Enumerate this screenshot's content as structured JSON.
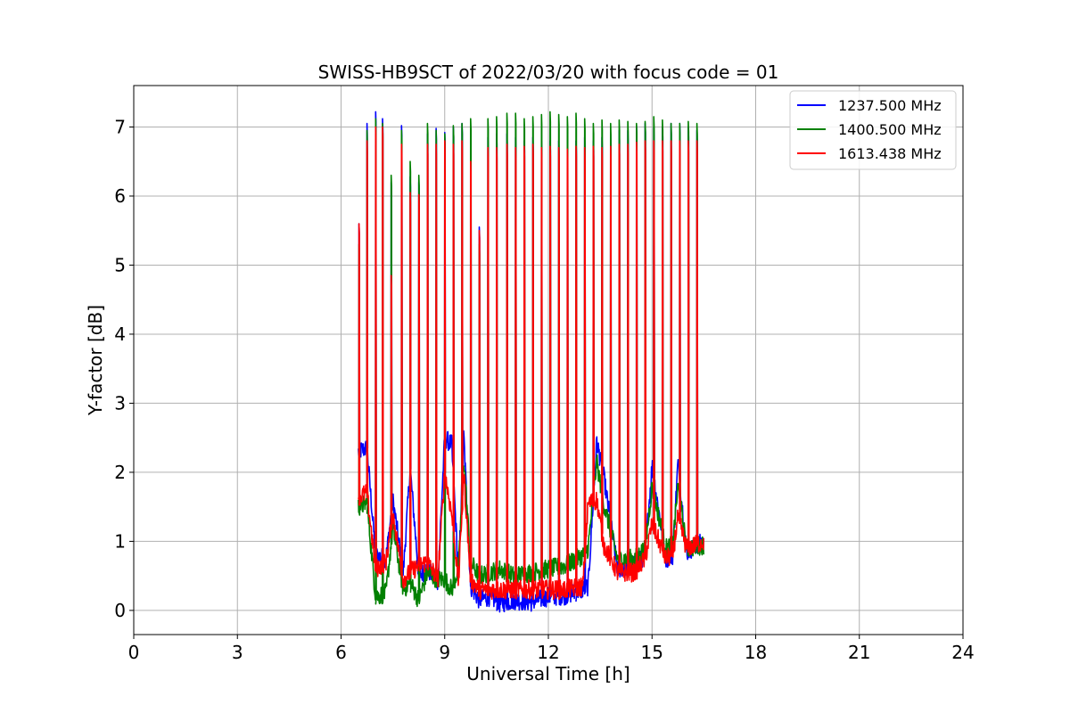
{
  "chart_data": {
    "type": "line",
    "title": "SWISS-HB9SCT of 2022/03/20 with focus code = 01",
    "xlabel": "Universal Time [h]",
    "ylabel": "Y-factor [dB]",
    "xlim": [
      0,
      24
    ],
    "ylim": [
      -0.35,
      7.6
    ],
    "xticks": [
      0,
      3,
      6,
      9,
      12,
      15,
      18,
      21,
      24
    ],
    "yticks": [
      0,
      1,
      2,
      3,
      4,
      5,
      6,
      7
    ],
    "grid": true,
    "legend_position": "top-right",
    "baseline_shape": {
      "x": [
        6.5,
        6.75,
        7.0,
        7.3,
        7.5,
        7.8,
        8.0,
        8.25,
        8.5,
        8.8,
        9.0,
        9.2,
        9.4,
        9.55,
        9.75,
        10.0,
        10.3,
        10.6,
        11.0,
        11.5,
        12.0,
        12.5,
        13.0,
        13.15,
        13.4,
        13.6,
        14.0,
        14.5,
        14.8,
        15.0,
        15.4,
        15.6,
        15.75,
        16.0,
        16.5
      ]
    },
    "series": [
      {
        "name": "1237.500 MHz",
        "color": "#0000ff",
        "spikes": [
          [
            6.52,
            5.6
          ],
          [
            6.75,
            7.05
          ],
          [
            7.0,
            7.22
          ],
          [
            7.2,
            7.12
          ],
          [
            7.45,
            6.2
          ],
          [
            7.75,
            7.02
          ],
          [
            8.0,
            6.28
          ],
          [
            8.25,
            6.2
          ],
          [
            8.5,
            6.9
          ],
          [
            8.75,
            6.98
          ],
          [
            9.0,
            6.92
          ],
          [
            9.25,
            7.0
          ],
          [
            9.5,
            7.05
          ],
          [
            9.75,
            6.2
          ],
          [
            10.0,
            5.55
          ],
          [
            10.25,
            6.85
          ],
          [
            10.5,
            6.9
          ],
          [
            10.8,
            6.9
          ],
          [
            11.05,
            6.85
          ],
          [
            11.3,
            6.8
          ],
          [
            11.55,
            6.85
          ],
          [
            11.8,
            6.8
          ],
          [
            12.05,
            6.8
          ],
          [
            12.3,
            6.8
          ],
          [
            12.55,
            6.75
          ],
          [
            12.8,
            6.8
          ],
          [
            13.05,
            6.85
          ],
          [
            13.3,
            6.8
          ],
          [
            13.55,
            6.85
          ],
          [
            13.8,
            6.9
          ],
          [
            14.05,
            6.95
          ],
          [
            14.3,
            6.95
          ],
          [
            14.55,
            7.02
          ],
          [
            14.8,
            7.05
          ],
          [
            15.05,
            7.0
          ],
          [
            15.3,
            7.0
          ],
          [
            15.55,
            7.05
          ],
          [
            15.8,
            7.05
          ],
          [
            16.05,
            7.0
          ],
          [
            16.3,
            6.95
          ]
        ],
        "baseline": [
          2.3,
          2.35,
          0.8,
          0.75,
          1.6,
          0.55,
          2.05,
          0.5,
          0.6,
          0.4,
          2.5,
          2.4,
          0.5,
          2.55,
          0.35,
          0.15,
          0.2,
          0.1,
          0.15,
          0.12,
          0.2,
          0.22,
          0.3,
          0.35,
          2.45,
          1.95,
          0.6,
          0.65,
          0.8,
          2.1,
          0.75,
          0.8,
          2.15,
          0.85,
          1.0
        ]
      },
      {
        "name": "1400.500 MHz",
        "color": "#008000",
        "spikes": [
          [
            6.52,
            5.3
          ],
          [
            6.75,
            6.95
          ],
          [
            7.0,
            7.12
          ],
          [
            7.2,
            7.05
          ],
          [
            7.45,
            6.3
          ],
          [
            7.75,
            6.95
          ],
          [
            8.0,
            6.5
          ],
          [
            8.25,
            6.3
          ],
          [
            8.5,
            7.05
          ],
          [
            8.75,
            6.95
          ],
          [
            9.0,
            6.9
          ],
          [
            9.25,
            7.02
          ],
          [
            9.5,
            7.05
          ],
          [
            9.75,
            7.12
          ],
          [
            10.0,
            5.3
          ],
          [
            10.25,
            7.12
          ],
          [
            10.5,
            7.15
          ],
          [
            10.8,
            7.2
          ],
          [
            11.05,
            7.2
          ],
          [
            11.3,
            7.12
          ],
          [
            11.55,
            7.15
          ],
          [
            11.8,
            7.18
          ],
          [
            12.05,
            7.22
          ],
          [
            12.3,
            7.18
          ],
          [
            12.55,
            7.15
          ],
          [
            12.8,
            7.2
          ],
          [
            13.05,
            7.12
          ],
          [
            13.3,
            7.05
          ],
          [
            13.55,
            7.1
          ],
          [
            13.8,
            7.05
          ],
          [
            14.05,
            7.1
          ],
          [
            14.3,
            7.08
          ],
          [
            14.55,
            7.05
          ],
          [
            14.8,
            7.08
          ],
          [
            15.05,
            7.15
          ],
          [
            15.3,
            7.1
          ],
          [
            15.55,
            7.05
          ],
          [
            15.8,
            7.05
          ],
          [
            16.05,
            7.08
          ],
          [
            16.3,
            7.05
          ]
        ],
        "baseline": [
          1.5,
          1.55,
          0.2,
          0.25,
          1.2,
          0.3,
          0.4,
          0.15,
          0.55,
          0.45,
          0.45,
          0.3,
          0.6,
          2.2,
          0.7,
          0.5,
          0.55,
          0.6,
          0.5,
          0.55,
          0.6,
          0.65,
          0.8,
          0.9,
          2.15,
          1.55,
          0.75,
          0.75,
          0.9,
          1.8,
          0.9,
          0.95,
          1.8,
          0.9,
          0.95
        ]
      },
      {
        "name": "1613.438 MHz",
        "color": "#ff0000",
        "spikes": [
          [
            6.52,
            5.6
          ],
          [
            6.75,
            6.8
          ],
          [
            7.0,
            7.0
          ],
          [
            7.2,
            7.0
          ],
          [
            7.45,
            4.85
          ],
          [
            7.75,
            6.75
          ],
          [
            8.0,
            6.05
          ],
          [
            8.25,
            6.02
          ],
          [
            8.5,
            6.75
          ],
          [
            8.75,
            6.75
          ],
          [
            9.0,
            6.8
          ],
          [
            9.25,
            6.75
          ],
          [
            9.5,
            6.8
          ],
          [
            9.75,
            6.5
          ],
          [
            10.0,
            5.5
          ],
          [
            10.25,
            6.7
          ],
          [
            10.5,
            6.7
          ],
          [
            10.8,
            6.75
          ],
          [
            11.05,
            6.7
          ],
          [
            11.3,
            6.72
          ],
          [
            11.55,
            6.75
          ],
          [
            11.8,
            6.7
          ],
          [
            12.05,
            6.72
          ],
          [
            12.3,
            6.7
          ],
          [
            12.55,
            6.68
          ],
          [
            12.8,
            6.72
          ],
          [
            13.05,
            6.7
          ],
          [
            13.3,
            6.72
          ],
          [
            13.55,
            6.7
          ],
          [
            13.8,
            6.72
          ],
          [
            14.05,
            6.75
          ],
          [
            14.3,
            6.75
          ],
          [
            14.55,
            6.78
          ],
          [
            14.8,
            6.8
          ],
          [
            15.05,
            6.8
          ],
          [
            15.3,
            6.8
          ],
          [
            15.55,
            6.8
          ],
          [
            15.8,
            6.8
          ],
          [
            16.05,
            6.8
          ],
          [
            16.3,
            6.8
          ]
        ],
        "baseline": [
          1.65,
          1.7,
          0.6,
          0.7,
          1.4,
          0.45,
          0.55,
          0.65,
          0.7,
          0.45,
          2.0,
          1.4,
          0.4,
          2.0,
          0.45,
          0.3,
          0.3,
          0.3,
          0.3,
          0.3,
          0.3,
          0.3,
          0.35,
          1.55,
          1.6,
          0.95,
          0.55,
          0.55,
          0.75,
          1.25,
          0.75,
          0.8,
          1.35,
          0.9,
          1.0
        ]
      }
    ]
  }
}
